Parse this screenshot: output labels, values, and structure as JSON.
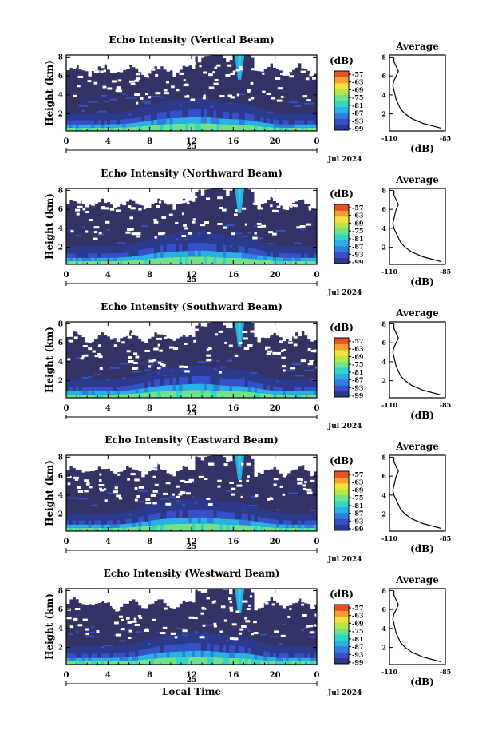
{
  "chart_data": [
    {
      "type": "heatmap",
      "title": "Echo Intensity (Vertical Beam)",
      "xlabel": "",
      "ylabel": "Height (km)",
      "x_ticks": [
        "0",
        "4",
        "8",
        "12",
        "16",
        "20",
        "0"
      ],
      "y_ticks": [
        "2",
        "4",
        "6",
        "8"
      ],
      "date_center": "25",
      "date_right": "Jul 2024",
      "xlim": [
        0,
        24
      ],
      "ylim": [
        0.2,
        8.2
      ],
      "colorbar": {
        "unit": "(dB)",
        "labels": [
          "-57",
          "-63",
          "-69",
          "-75",
          "-81",
          "-87",
          "-93",
          "-99"
        ]
      },
      "profile": {
        "title": "Average",
        "xlabel": "(dB)",
        "x_ticks": [
          "-110",
          "-85"
        ],
        "y_ticks": [
          "2",
          "4",
          "6",
          "8"
        ],
        "xlim": [
          -110,
          -85
        ],
        "ylim": [
          0.2,
          8.2
        ],
        "height": [
          0.5,
          1.0,
          1.5,
          2.0,
          2.5,
          3.0,
          3.5,
          4.0,
          4.5,
          5.0,
          5.5,
          6.0,
          6.5,
          7.0,
          7.5,
          8.0
        ],
        "db": [
          -87,
          -95,
          -100,
          -103,
          -105,
          -106,
          -107,
          -107.5,
          -108,
          -108.5,
          -108,
          -107,
          -106,
          -107,
          -108,
          -108
        ]
      }
    },
    {
      "type": "heatmap",
      "title": "Echo Intensity (Northward Beam)",
      "xlabel": "",
      "ylabel": "Height (km)",
      "x_ticks": [
        "0",
        "4",
        "8",
        "12",
        "16",
        "20",
        "0"
      ],
      "y_ticks": [
        "2",
        "4",
        "6",
        "8"
      ],
      "date_center": "25",
      "date_right": "Jul 2024",
      "xlim": [
        0,
        24
      ],
      "ylim": [
        0.2,
        8.2
      ],
      "colorbar": {
        "unit": "(dB)",
        "labels": [
          "-57",
          "-63",
          "-69",
          "-75",
          "-81",
          "-87",
          "-93",
          "-99"
        ]
      },
      "profile": {
        "title": "Average",
        "xlabel": "(dB)",
        "x_ticks": [
          "-110",
          "-85"
        ],
        "y_ticks": [
          "2",
          "4",
          "6",
          "8"
        ],
        "xlim": [
          -110,
          -85
        ],
        "ylim": [
          0.2,
          8.2
        ],
        "height": [
          0.5,
          1.0,
          1.5,
          2.0,
          2.5,
          3.0,
          3.5,
          4.0,
          4.5,
          5.0,
          5.5,
          6.0,
          6.5,
          7.0,
          7.5,
          8.0
        ],
        "db": [
          -87,
          -95,
          -100,
          -103,
          -105,
          -106,
          -107,
          -108,
          -108.5,
          -108,
          -107.5,
          -107,
          -106,
          -107,
          -108,
          -108
        ]
      }
    },
    {
      "type": "heatmap",
      "title": "Echo Intensity (Southward Beam)",
      "xlabel": "",
      "ylabel": "Height (km)",
      "x_ticks": [
        "0",
        "4",
        "8",
        "12",
        "16",
        "20",
        "0"
      ],
      "y_ticks": [
        "2",
        "4",
        "6",
        "8"
      ],
      "date_center": "25",
      "date_right": "Jul 2024",
      "xlim": [
        0,
        24
      ],
      "ylim": [
        0.2,
        8.2
      ],
      "colorbar": {
        "unit": "(dB)",
        "labels": [
          "-57",
          "-63",
          "-69",
          "-75",
          "-81",
          "-87",
          "-93",
          "-99"
        ]
      },
      "profile": {
        "title": "Average",
        "xlabel": "(dB)",
        "x_ticks": [
          "-110",
          "-85"
        ],
        "y_ticks": [
          "2",
          "4",
          "6",
          "8"
        ],
        "xlim": [
          -110,
          -85
        ],
        "ylim": [
          0.2,
          8.2
        ],
        "height": [
          0.5,
          1.0,
          1.5,
          2.0,
          2.5,
          3.0,
          3.5,
          4.0,
          4.5,
          5.0,
          5.5,
          6.0,
          6.5,
          7.0,
          7.5,
          8.0
        ],
        "db": [
          -87,
          -95,
          -100,
          -103,
          -105,
          -106,
          -107,
          -107.5,
          -108,
          -108.5,
          -108,
          -107,
          -106,
          -107,
          -108,
          -108
        ]
      }
    },
    {
      "type": "heatmap",
      "title": "Echo Intensity (Eastward Beam)",
      "xlabel": "",
      "ylabel": "Height (km)",
      "x_ticks": [
        "0",
        "4",
        "8",
        "12",
        "16",
        "20",
        "0"
      ],
      "y_ticks": [
        "2",
        "4",
        "6",
        "8"
      ],
      "date_center": "25",
      "date_right": "Jul 2024",
      "xlim": [
        0,
        24
      ],
      "ylim": [
        0.2,
        8.2
      ],
      "colorbar": {
        "unit": "(dB)",
        "labels": [
          "-57",
          "-63",
          "-69",
          "-75",
          "-81",
          "-87",
          "-93",
          "-99"
        ]
      },
      "profile": {
        "title": "Average",
        "xlabel": "(dB)",
        "x_ticks": [
          "-110",
          "-85"
        ],
        "y_ticks": [
          "2",
          "4",
          "6",
          "8"
        ],
        "xlim": [
          -110,
          -85
        ],
        "ylim": [
          0.2,
          8.2
        ],
        "height": [
          0.5,
          1.0,
          1.5,
          2.0,
          2.5,
          3.0,
          3.5,
          4.0,
          4.5,
          5.0,
          5.5,
          6.0,
          6.5,
          7.0,
          7.5,
          8.0
        ],
        "db": [
          -87,
          -95,
          -100,
          -103,
          -105,
          -106,
          -107,
          -108,
          -108.5,
          -108,
          -107.5,
          -107,
          -106,
          -107,
          -108,
          -108
        ]
      }
    },
    {
      "type": "heatmap",
      "title": "Echo Intensity (Westward Beam)",
      "xlabel": "Local Time",
      "ylabel": "Height (km)",
      "x_ticks": [
        "0",
        "4",
        "8",
        "12",
        "16",
        "20",
        "0"
      ],
      "y_ticks": [
        "2",
        "4",
        "6",
        "8"
      ],
      "date_center": "25",
      "date_right": "Jul 2024",
      "xlim": [
        0,
        24
      ],
      "ylim": [
        0.2,
        8.2
      ],
      "colorbar": {
        "unit": "(dB)",
        "labels": [
          "-57",
          "-63",
          "-69",
          "-75",
          "-81",
          "-87",
          "-93",
          "-99"
        ]
      },
      "profile": {
        "title": "Average",
        "xlabel": "(dB)",
        "x_ticks": [
          "-110",
          "-85"
        ],
        "y_ticks": [
          "2",
          "4",
          "6",
          "8"
        ],
        "xlim": [
          -110,
          -85
        ],
        "ylim": [
          0.2,
          8.2
        ],
        "height": [
          0.5,
          1.0,
          1.5,
          2.0,
          2.5,
          3.0,
          3.5,
          4.0,
          4.5,
          5.0,
          5.5,
          6.0,
          6.5,
          7.0,
          7.5,
          8.0
        ],
        "db": [
          -87,
          -95,
          -100,
          -103,
          -105,
          -106,
          -107,
          -107.5,
          -108,
          -108.5,
          -108,
          -107,
          -106,
          -107,
          -108,
          -108
        ]
      }
    }
  ],
  "colors": {
    "background_echo": "#333366",
    "scale": [
      "#2c3a8c",
      "#3550c8",
      "#2f7fe0",
      "#29b0e6",
      "#33d6c4",
      "#6fe28a",
      "#b6e64a",
      "#f2e23a",
      "#f5a030",
      "#e8502a"
    ]
  }
}
